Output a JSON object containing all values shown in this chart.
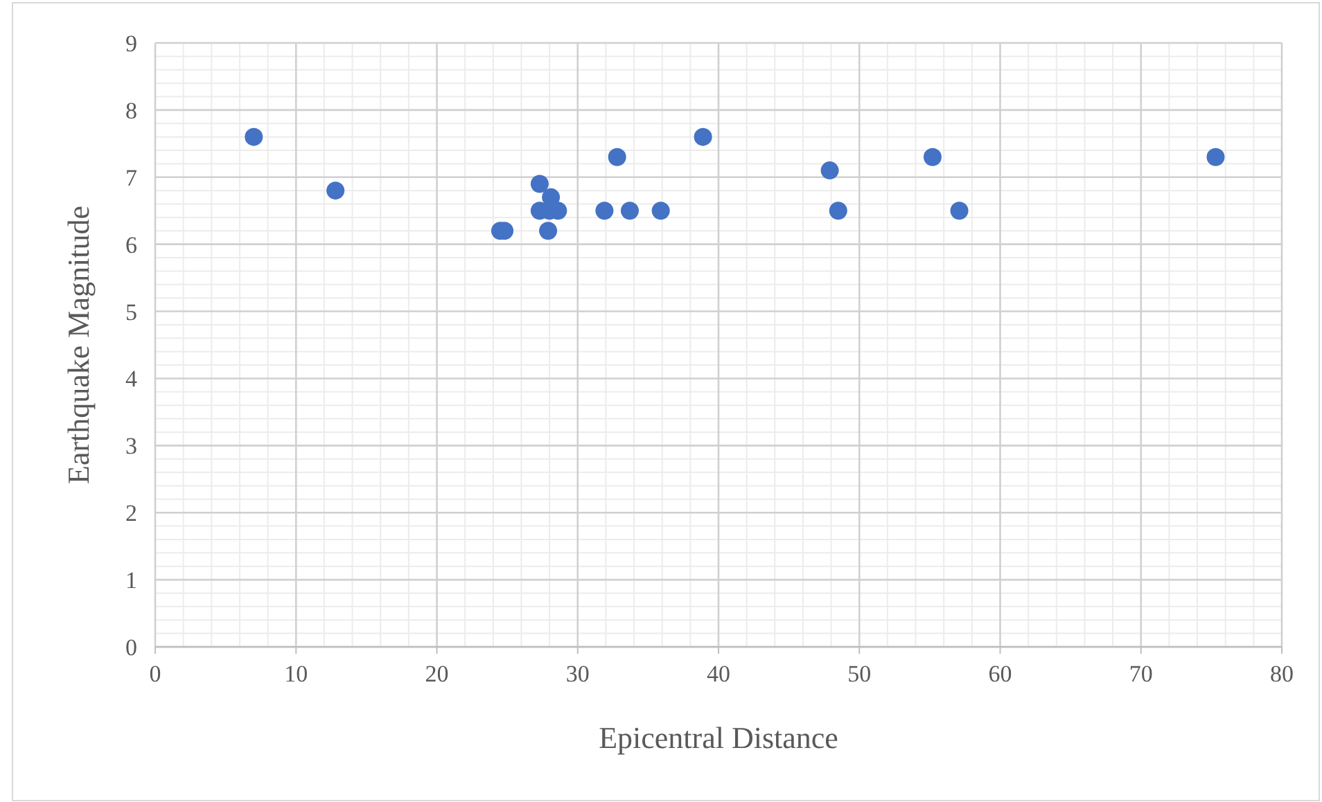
{
  "chart_data": {
    "type": "scatter",
    "xlabel": "Epicentral Distance",
    "ylabel": "Earthquake Magnitude",
    "x": [
      7.0,
      12.8,
      24.5,
      24.8,
      27.3,
      27.3,
      28.1,
      28.0,
      28.6,
      27.9,
      31.9,
      32.8,
      33.7,
      35.9,
      38.9,
      47.9,
      48.5,
      55.2,
      57.1,
      75.3
    ],
    "series": [
      {
        "color": "#4472c4",
        "values": [
          7.6,
          6.8,
          6.2,
          6.2,
          6.9,
          6.5,
          6.7,
          6.5,
          6.5,
          6.2,
          6.5,
          7.3,
          6.5,
          6.5,
          7.6,
          7.1,
          6.5,
          7.3,
          6.5,
          7.3
        ]
      }
    ],
    "xlim": [
      0,
      80
    ],
    "ylim": [
      0,
      9
    ],
    "xticks": [
      0,
      10,
      20,
      30,
      40,
      50,
      60,
      70,
      80
    ],
    "yticks": [
      0,
      1,
      2,
      3,
      4,
      5,
      6,
      7,
      8,
      9
    ],
    "grid": true,
    "marker": "circle"
  }
}
